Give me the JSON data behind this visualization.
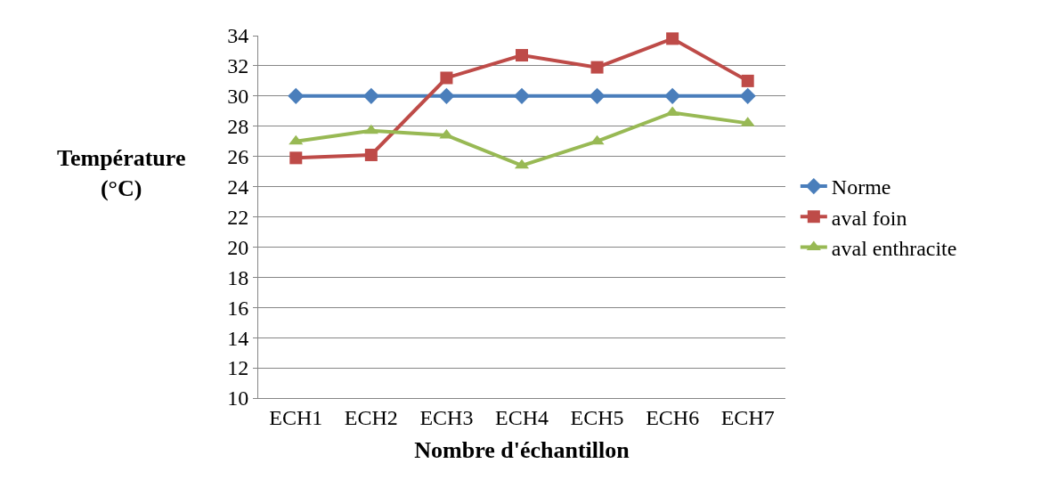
{
  "chart_data": {
    "type": "line",
    "xlabel": "Nombre d'échantillon",
    "ylabel": "Température (°C)",
    "categories": [
      "ECH1",
      "ECH2",
      "ECH3",
      "ECH4",
      "ECH5",
      "ECH6",
      "ECH7"
    ],
    "series": [
      {
        "name": "Norme",
        "color": "#4a7ebb",
        "marker": "diamond",
        "values": [
          30,
          30,
          30,
          30,
          30,
          30,
          30
        ]
      },
      {
        "name": "aval foin",
        "color": "#be4b48",
        "marker": "square",
        "values": [
          25.9,
          26.1,
          31.2,
          32.7,
          31.9,
          33.8,
          31.0
        ]
      },
      {
        "name": "aval enthracite",
        "color": "#98b954",
        "marker": "triangle",
        "values": [
          27.0,
          27.7,
          27.4,
          25.4,
          27.0,
          28.9,
          28.2
        ]
      }
    ],
    "ylim": [
      10,
      34
    ],
    "yticks": [
      10,
      12,
      14,
      16,
      18,
      20,
      22,
      24,
      26,
      28,
      30,
      32,
      34
    ],
    "grid": "y",
    "legend": "right",
    "line_style": "solid"
  }
}
